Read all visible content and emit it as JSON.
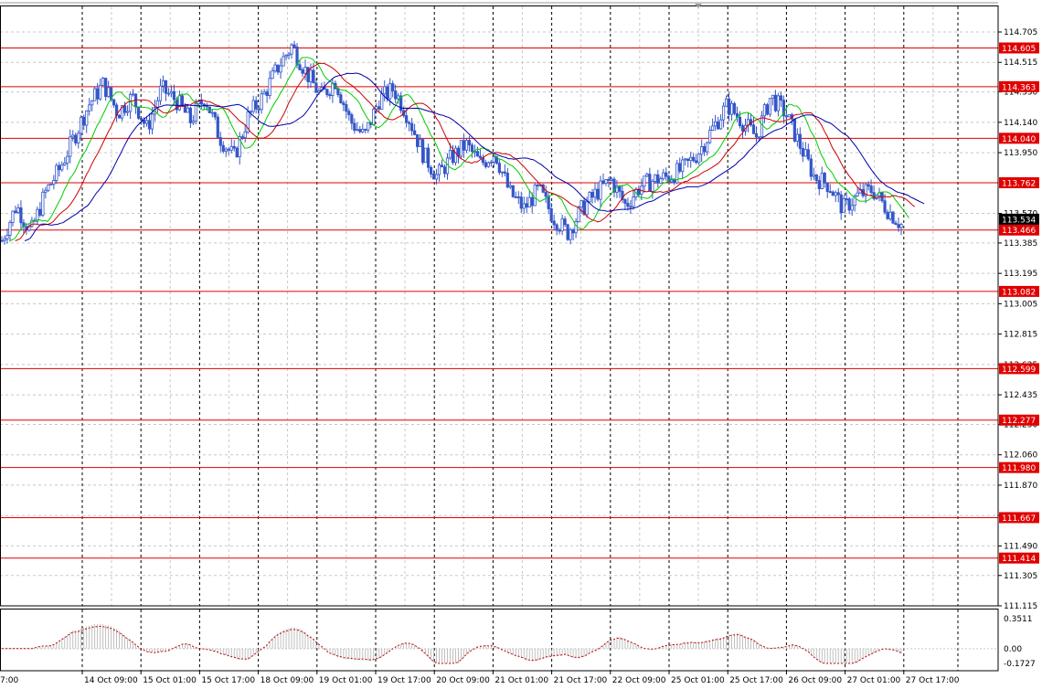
{
  "chart_data": {
    "type": "candlestick",
    "price_axis": {
      "ticks": [
        "114.705",
        "114.515",
        "114.330",
        "114.140",
        "113.950",
        "113.570",
        "113.385",
        "113.195",
        "113.005",
        "112.815",
        "112.625",
        "112.435",
        "112.250",
        "112.060",
        "111.870",
        "111.680",
        "111.490",
        "111.305",
        "111.115"
      ],
      "ylim": [
        111.115,
        114.705
      ]
    },
    "time_axis": {
      "labels": [
        "7:00",
        "14 Oct 09:00",
        "15 Oct 01:00",
        "15 Oct 17:00",
        "18 Oct 09:00",
        "19 Oct 01:00",
        "19 Oct 17:00",
        "20 Oct 09:00",
        "21 Oct 01:00",
        "21 Oct 17:00",
        "22 Oct 09:00",
        "25 Oct 01:00",
        "25 Oct 17:00",
        "26 Oct 09:00",
        "27 Oct 01:00",
        "27 Oct 17:00"
      ]
    },
    "levels": [
      "114.605",
      "114.363",
      "114.040",
      "113.762",
      "113.466",
      "113.082",
      "112.599",
      "112.277",
      "111.980",
      "111.667",
      "111.414"
    ],
    "current_price": "113.534",
    "oscillator": {
      "ticks": [
        "0.3511",
        "0.00",
        "-0.1727"
      ],
      "ylim": [
        -0.1727,
        0.3511
      ]
    },
    "path": [
      113.4,
      113.62,
      113.45,
      113.7,
      113.85,
      114.05,
      114.25,
      114.38,
      114.2,
      114.3,
      114.1,
      114.35,
      114.28,
      114.15,
      114.3,
      114.05,
      113.92,
      114.18,
      114.3,
      114.48,
      114.62,
      114.45,
      114.3,
      114.4,
      114.15,
      114.05,
      114.28,
      114.35,
      114.18,
      113.95,
      113.8,
      113.92,
      114.0,
      113.88,
      113.95,
      113.7,
      113.6,
      113.72,
      113.55,
      113.45,
      113.6,
      113.7,
      113.78,
      113.62,
      113.74,
      113.78,
      113.8,
      113.85,
      113.95,
      114.1,
      114.25,
      114.15,
      114.05,
      114.3,
      114.2,
      114.0,
      113.8,
      113.75,
      113.6,
      113.68,
      113.72,
      113.6,
      113.5
    ],
    "colors": {
      "candle": "#3456c8",
      "ma_fast": "#00cc00",
      "ma_mid": "#cc0000",
      "ma_slow": "#0000aa",
      "level_line": "#e00000",
      "level_label_bg": "#e00000",
      "current_label_bg": "#000000",
      "oscillator": "#c00000",
      "grid": "#c8c8c8"
    }
  }
}
